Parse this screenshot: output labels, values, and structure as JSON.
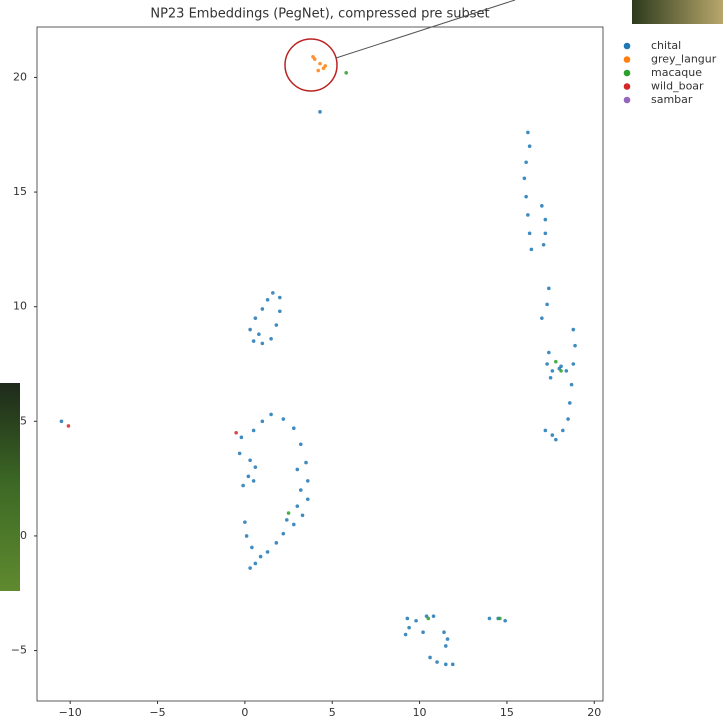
{
  "chart_data": {
    "type": "scatter",
    "title": "NP23 Embeddings (PegNet), compressed pre subset",
    "xlim": [
      -11.9,
      20.5
    ],
    "ylim": [
      -7.2,
      22.2
    ],
    "xticks": [
      {
        "value": -10,
        "label": "−10"
      },
      {
        "value": -5,
        "label": "−5"
      },
      0,
      5,
      10,
      15,
      20
    ],
    "yticks": [
      {
        "value": -5,
        "label": "−5"
      },
      0,
      5,
      10,
      15,
      20
    ],
    "grid": false,
    "legend": "outside-right",
    "series": [
      {
        "name": "chital",
        "color": "#1f77b4",
        "x": [
          4.3,
          16.2,
          16.3,
          16.1,
          16.0,
          16.1,
          16.2,
          16.3,
          16.4,
          17.0,
          17.2,
          17.2,
          17.1,
          17.4,
          17.3,
          17.0,
          18.8,
          18.9,
          18.8,
          18.7,
          18.6,
          18.5,
          18.2,
          17.6,
          17.2,
          17.8,
          17.3,
          17.6,
          18.0,
          18.4,
          17.4,
          17.5,
          18.1,
          1.6,
          2.0,
          2.0,
          1.8,
          1.5,
          1.0,
          0.5,
          0.3,
          0.6,
          1.0,
          1.3,
          0.8,
          1.5,
          2.2,
          2.8,
          3.2,
          3.5,
          3.6,
          3.6,
          3.3,
          2.8,
          2.4,
          3.0,
          3.2,
          3.0,
          1.0,
          0.5,
          -0.2,
          -0.3,
          0.3,
          0.6,
          0.2,
          -0.1,
          0.5,
          0.0,
          0.1,
          0.4,
          0.9,
          1.3,
          1.8,
          2.2,
          0.6,
          0.3,
          9.3,
          9.4,
          9.2,
          9.8,
          10.4,
          10.8,
          10.2,
          11.4,
          11.6,
          11.5,
          10.6,
          11.0,
          11.5,
          11.9,
          14.0,
          14.5,
          14.9,
          -10.5
        ],
        "y": [
          18.5,
          17.6,
          17.0,
          16.3,
          15.6,
          14.8,
          14.0,
          13.2,
          12.5,
          14.4,
          13.8,
          13.2,
          12.7,
          10.8,
          10.1,
          9.5,
          9.0,
          8.3,
          7.5,
          6.6,
          5.8,
          5.1,
          4.6,
          4.4,
          4.6,
          4.2,
          7.5,
          7.2,
          7.3,
          7.2,
          8.0,
          6.9,
          7.4,
          10.6,
          10.4,
          9.8,
          9.2,
          8.6,
          8.4,
          8.5,
          9.0,
          9.5,
          9.9,
          10.3,
          8.8,
          5.3,
          5.1,
          4.7,
          4.0,
          3.2,
          2.4,
          1.6,
          0.9,
          0.5,
          0.7,
          1.3,
          2.0,
          2.9,
          5.0,
          4.6,
          4.3,
          3.6,
          3.3,
          3.0,
          2.6,
          2.2,
          2.4,
          0.6,
          0.0,
          -0.5,
          -0.9,
          -0.7,
          -0.3,
          0.1,
          -1.2,
          -1.4,
          -3.6,
          -4.0,
          -4.3,
          -3.7,
          -3.5,
          -3.5,
          -4.2,
          -4.2,
          -4.5,
          -4.8,
          -5.3,
          -5.5,
          -5.6,
          -5.6,
          -3.6,
          -3.6,
          -3.7,
          5.0
        ]
      },
      {
        "name": "grey_langur",
        "color": "#ff7f0e",
        "x": [
          4.0,
          4.3,
          4.6,
          4.2,
          3.9,
          4.5
        ],
        "y": [
          20.8,
          20.6,
          20.5,
          20.3,
          20.9,
          20.4
        ]
      },
      {
        "name": "macaque",
        "color": "#2ca02c",
        "x": [
          5.8,
          10.5,
          14.6,
          17.8,
          18.1,
          2.5
        ],
        "y": [
          20.2,
          -3.6,
          -3.6,
          7.6,
          7.2,
          1.0
        ]
      },
      {
        "name": "wild_boar",
        "color": "#d62728",
        "x": [
          -0.5,
          -10.1
        ],
        "y": [
          4.5,
          4.8
        ]
      },
      {
        "name": "sambar",
        "color": "#9467bd",
        "x": [],
        "y": []
      }
    ]
  }
}
